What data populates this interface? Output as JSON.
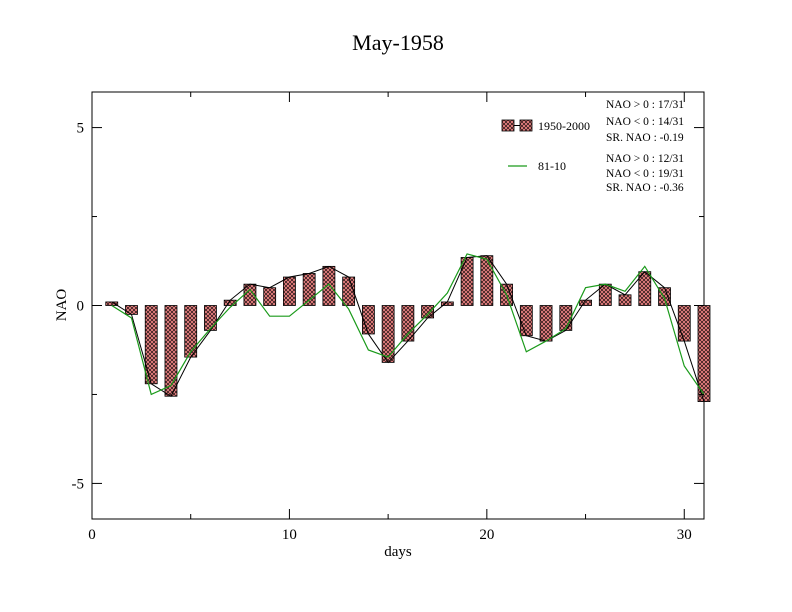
{
  "chart_data": {
    "type": "bar",
    "title": "May-1958",
    "xlabel": "days",
    "ylabel": "NAO",
    "xlim": [
      0,
      31
    ],
    "ylim": [
      -6,
      6
    ],
    "xticks": [
      0,
      10,
      20,
      30
    ],
    "yticks": [
      -5,
      0,
      5
    ],
    "xtick_labels": [
      "0",
      "10",
      "20",
      "30"
    ],
    "ytick_labels": [
      "-5",
      "0",
      "5"
    ],
    "grid": false,
    "legend_position": "top-right",
    "colors": {
      "bar_fill": "#e88080",
      "bar_hatch": "#000000",
      "line_black": "#000000",
      "line_green": "#1a9a1a"
    },
    "x": [
      1,
      2,
      3,
      4,
      5,
      6,
      7,
      8,
      9,
      10,
      11,
      12,
      13,
      14,
      15,
      16,
      17,
      18,
      19,
      20,
      21,
      22,
      23,
      24,
      25,
      26,
      27,
      28,
      29,
      30,
      31
    ],
    "series": [
      {
        "name": "1950-2000",
        "style": "bar+line",
        "values": [
          0.1,
          -0.25,
          -2.2,
          -2.55,
          -1.45,
          -0.7,
          0.15,
          0.6,
          0.5,
          0.8,
          0.9,
          1.1,
          0.8,
          -0.8,
          -1.6,
          -1.0,
          -0.35,
          0.1,
          1.35,
          1.4,
          0.6,
          -0.85,
          -1.0,
          -0.7,
          0.15,
          0.6,
          0.3,
          0.95,
          0.5,
          -1.0,
          -2.7
        ]
      },
      {
        "name": "81-10",
        "style": "line",
        "values": [
          0.0,
          -0.35,
          -2.5,
          -2.25,
          -1.3,
          -0.65,
          -0.05,
          0.45,
          -0.3,
          -0.3,
          0.15,
          0.6,
          -0.1,
          -1.25,
          -1.45,
          -0.8,
          -0.25,
          0.35,
          1.45,
          1.3,
          0.3,
          -1.3,
          -1.0,
          -0.65,
          0.5,
          0.6,
          0.4,
          1.1,
          0.2,
          -1.7,
          -2.5
        ]
      }
    ],
    "stats": {
      "s1950": [
        "NAO > 0 : 17/31",
        "NAO < 0 : 14/31",
        "SR. NAO : -0.19"
      ],
      "s8110": [
        "NAO > 0 : 12/31",
        "NAO < 0 : 19/31",
        "SR. NAO : -0.36"
      ]
    }
  }
}
